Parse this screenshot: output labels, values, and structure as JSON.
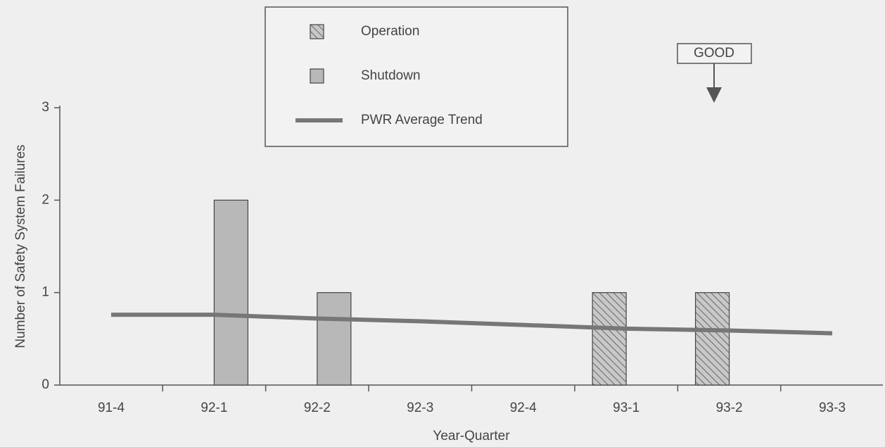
{
  "chart_data": {
    "type": "bar",
    "xlabel": "Year-Quarter",
    "ylabel": "Number of Safety System Failures",
    "categories": [
      "91-4",
      "92-1",
      "92-2",
      "92-3",
      "92-4",
      "93-1",
      "93-2",
      "93-3"
    ],
    "series": [
      {
        "name": "Operation",
        "type": "bar",
        "hatch": true,
        "color": "#b8b8b8",
        "values": [
          0,
          0,
          0,
          0,
          0,
          1,
          1,
          0
        ]
      },
      {
        "name": "Shutdown",
        "type": "bar",
        "hatch": false,
        "color": "#b8b8b8",
        "values": [
          0,
          2,
          1,
          0,
          0,
          0,
          0,
          0
        ]
      },
      {
        "name": "PWR Average Trend",
        "type": "line",
        "color": "#777777",
        "values": [
          0.76,
          0.76,
          0.72,
          0.69,
          0.65,
          0.61,
          0.59,
          0.56
        ]
      }
    ],
    "ylim": [
      0,
      3
    ],
    "yticks": [
      0,
      1,
      2,
      3
    ],
    "annotation": "GOOD"
  }
}
